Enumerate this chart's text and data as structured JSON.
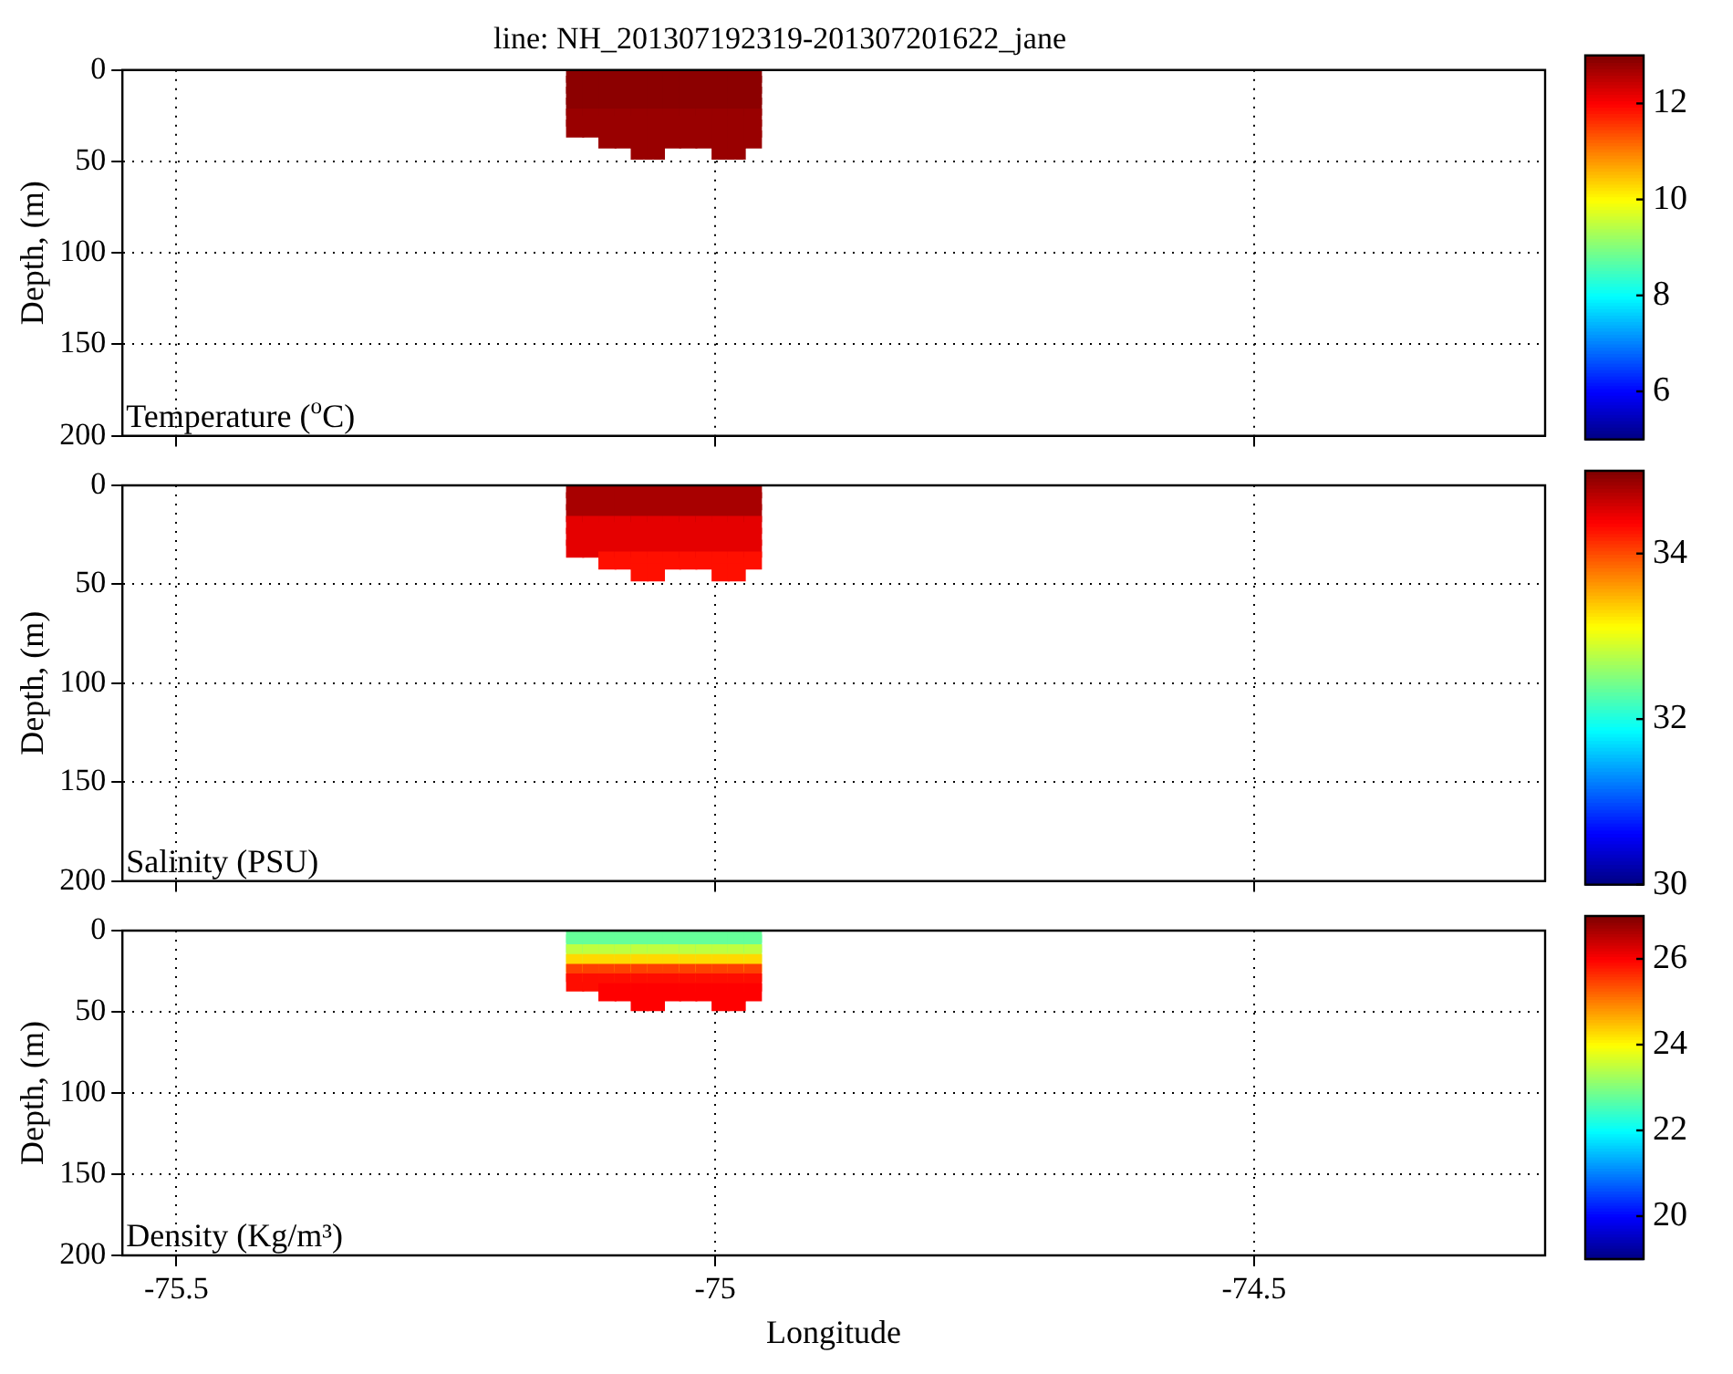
{
  "chart_data": [
    {
      "type": "scatter",
      "title": "line: NH_201307192319-201307201622_jane",
      "ylabel": "Depth, (m)",
      "annotations": [
        "Temperature ($^{o}$C)"
      ],
      "xlim": [
        -75.55,
        -74.23
      ],
      "xticks": [
        -75.5,
        -75,
        -74.5
      ],
      "ylim": [
        200,
        0
      ],
      "yticks": [
        0,
        50,
        100,
        150,
        200
      ],
      "clim": [
        5,
        13
      ],
      "cticks": [
        6,
        8,
        10,
        12
      ],
      "grid": true,
      "marker": "square",
      "tick_labels": "y",
      "series": [
        {
          "x": [
            -75.13,
            -75.13,
            -75.13,
            -75.13,
            -75.13,
            -75.13,
            -75.115,
            -75.115,
            -75.115,
            -75.115,
            -75.115,
            -75.115,
            -75.1,
            -75.1,
            -75.1,
            -75.1,
            -75.1,
            -75.1,
            -75.1,
            -75.085,
            -75.085,
            -75.085,
            -75.085,
            -75.085,
            -75.085,
            -75.085,
            -75.07,
            -75.07,
            -75.07,
            -75.07,
            -75.07,
            -75.07,
            -75.07,
            -75.07,
            -75.055,
            -75.055,
            -75.055,
            -75.055,
            -75.055,
            -75.055,
            -75.055,
            -75.055,
            -75.04,
            -75.04,
            -75.04,
            -75.04,
            -75.04,
            -75.04,
            -75.04,
            -75.025,
            -75.025,
            -75.025,
            -75.025,
            -75.025,
            -75.025,
            -75.025,
            -75.01,
            -75.01,
            -75.01,
            -75.01,
            -75.01,
            -75.01,
            -75.01,
            -74.995,
            -74.995,
            -74.995,
            -74.995,
            -74.995,
            -74.995,
            -74.995,
            -74.995,
            -74.98,
            -74.98,
            -74.98,
            -74.98,
            -74.98,
            -74.98,
            -74.98,
            -74.98,
            -74.965,
            -74.965,
            -74.965,
            -74.965,
            -74.965,
            -74.965,
            -74.965
          ],
          "values": [
            2,
            8,
            14,
            20,
            26,
            32,
            2,
            8,
            14,
            20,
            26,
            32,
            2,
            8,
            14,
            20,
            26,
            32,
            38,
            2,
            8,
            14,
            20,
            26,
            32,
            38,
            2,
            8,
            14,
            20,
            26,
            32,
            38,
            44,
            2,
            8,
            14,
            20,
            26,
            32,
            38,
            44,
            2,
            8,
            14,
            20,
            26,
            32,
            38,
            2,
            8,
            14,
            20,
            26,
            32,
            38,
            2,
            8,
            14,
            20,
            26,
            32,
            38,
            2,
            8,
            14,
            20,
            26,
            32,
            38,
            44,
            2,
            8,
            14,
            20,
            26,
            32,
            38,
            44,
            2,
            8,
            14,
            20,
            26,
            32,
            38
          ],
          "cvalues": [
            12.9,
            12.9,
            12.9,
            12.9,
            12.8,
            12.8,
            12.9,
            12.9,
            12.9,
            12.9,
            12.8,
            12.8,
            12.9,
            12.9,
            12.9,
            12.9,
            12.8,
            12.8,
            12.8,
            12.9,
            12.9,
            12.9,
            12.9,
            12.8,
            12.8,
            12.8,
            12.9,
            12.9,
            12.9,
            12.9,
            12.8,
            12.8,
            12.8,
            12.8,
            12.9,
            12.9,
            12.9,
            12.9,
            12.8,
            12.8,
            12.8,
            12.8,
            12.9,
            12.9,
            12.9,
            12.9,
            12.8,
            12.8,
            12.8,
            12.9,
            12.9,
            12.9,
            12.9,
            12.8,
            12.8,
            12.8,
            12.9,
            12.9,
            12.9,
            12.9,
            12.8,
            12.8,
            12.8,
            12.9,
            12.9,
            12.9,
            12.9,
            12.8,
            12.8,
            12.8,
            12.8,
            12.9,
            12.9,
            12.9,
            12.9,
            12.8,
            12.8,
            12.8,
            12.8,
            12.9,
            12.9,
            12.9,
            12.9,
            12.8,
            12.8,
            12.8
          ]
        }
      ]
    },
    {
      "type": "scatter",
      "ylabel": "Depth, (m)",
      "annotations": [
        "Salinity (PSU)"
      ],
      "xlim": [
        -75.55,
        -74.23
      ],
      "xticks": [
        -75.5,
        -75,
        -74.5
      ],
      "ylim": [
        200,
        0
      ],
      "yticks": [
        0,
        50,
        100,
        150,
        200
      ],
      "clim": [
        30,
        35
      ],
      "cticks": [
        30,
        32,
        34
      ],
      "grid": true,
      "marker": "square",
      "tick_labels": "y",
      "series": [
        {
          "x": [
            -75.13,
            -75.13,
            -75.13,
            -75.13,
            -75.13,
            -75.13,
            -75.115,
            -75.115,
            -75.115,
            -75.115,
            -75.115,
            -75.115,
            -75.1,
            -75.1,
            -75.1,
            -75.1,
            -75.1,
            -75.1,
            -75.1,
            -75.085,
            -75.085,
            -75.085,
            -75.085,
            -75.085,
            -75.085,
            -75.085,
            -75.07,
            -75.07,
            -75.07,
            -75.07,
            -75.07,
            -75.07,
            -75.07,
            -75.07,
            -75.055,
            -75.055,
            -75.055,
            -75.055,
            -75.055,
            -75.055,
            -75.055,
            -75.055,
            -75.04,
            -75.04,
            -75.04,
            -75.04,
            -75.04,
            -75.04,
            -75.04,
            -75.025,
            -75.025,
            -75.025,
            -75.025,
            -75.025,
            -75.025,
            -75.025,
            -75.01,
            -75.01,
            -75.01,
            -75.01,
            -75.01,
            -75.01,
            -75.01,
            -74.995,
            -74.995,
            -74.995,
            -74.995,
            -74.995,
            -74.995,
            -74.995,
            -74.995,
            -74.98,
            -74.98,
            -74.98,
            -74.98,
            -74.98,
            -74.98,
            -74.98,
            -74.98,
            -74.965,
            -74.965,
            -74.965,
            -74.965,
            -74.965,
            -74.965,
            -74.965
          ],
          "values": [
            2,
            8,
            14,
            20,
            26,
            32,
            2,
            8,
            14,
            20,
            26,
            32,
            2,
            8,
            14,
            20,
            26,
            32,
            38,
            2,
            8,
            14,
            20,
            26,
            32,
            38,
            2,
            8,
            14,
            20,
            26,
            32,
            38,
            44,
            2,
            8,
            14,
            20,
            26,
            32,
            38,
            44,
            2,
            8,
            14,
            20,
            26,
            32,
            38,
            2,
            8,
            14,
            20,
            26,
            32,
            38,
            2,
            8,
            14,
            20,
            26,
            32,
            38,
            2,
            8,
            14,
            20,
            26,
            32,
            38,
            44,
            2,
            8,
            14,
            20,
            26,
            32,
            38,
            44,
            2,
            8,
            14,
            20,
            26,
            32,
            38
          ],
          "cvalues": [
            34.8,
            34.8,
            34.8,
            34.5,
            34.5,
            34.5,
            34.8,
            34.8,
            34.8,
            34.5,
            34.5,
            34.5,
            34.8,
            34.8,
            34.8,
            34.5,
            34.5,
            34.5,
            34.3,
            34.8,
            34.8,
            34.8,
            34.5,
            34.5,
            34.5,
            34.3,
            34.8,
            34.8,
            34.8,
            34.5,
            34.5,
            34.5,
            34.3,
            34.3,
            34.8,
            34.8,
            34.8,
            34.5,
            34.5,
            34.5,
            34.3,
            34.3,
            34.8,
            34.8,
            34.8,
            34.5,
            34.5,
            34.5,
            34.3,
            34.8,
            34.8,
            34.8,
            34.5,
            34.5,
            34.5,
            34.3,
            34.8,
            34.8,
            34.8,
            34.5,
            34.5,
            34.5,
            34.3,
            34.8,
            34.8,
            34.8,
            34.5,
            34.5,
            34.5,
            34.3,
            34.3,
            34.8,
            34.8,
            34.8,
            34.5,
            34.5,
            34.5,
            34.3,
            34.3,
            34.8,
            34.8,
            34.8,
            34.5,
            34.5,
            34.5,
            34.3
          ]
        }
      ]
    },
    {
      "type": "scatter",
      "xlabel": "Longitude",
      "ylabel": "Depth, (m)",
      "annotations": [
        "Density (Kg/m³)"
      ],
      "xlim": [
        -75.55,
        -74.23
      ],
      "xticks": [
        -75.5,
        -75,
        -74.5
      ],
      "ylim": [
        200,
        0
      ],
      "yticks": [
        0,
        50,
        100,
        150,
        200
      ],
      "clim": [
        19,
        27
      ],
      "cticks": [
        20,
        22,
        24,
        26
      ],
      "grid": true,
      "marker": "square",
      "series": [
        {
          "x": [
            -75.13,
            -75.13,
            -75.13,
            -75.13,
            -75.13,
            -75.13,
            -75.115,
            -75.115,
            -75.115,
            -75.115,
            -75.115,
            -75.115,
            -75.1,
            -75.1,
            -75.1,
            -75.1,
            -75.1,
            -75.1,
            -75.1,
            -75.085,
            -75.085,
            -75.085,
            -75.085,
            -75.085,
            -75.085,
            -75.085,
            -75.07,
            -75.07,
            -75.07,
            -75.07,
            -75.07,
            -75.07,
            -75.07,
            -75.07,
            -75.055,
            -75.055,
            -75.055,
            -75.055,
            -75.055,
            -75.055,
            -75.055,
            -75.055,
            -75.04,
            -75.04,
            -75.04,
            -75.04,
            -75.04,
            -75.04,
            -75.04,
            -75.025,
            -75.025,
            -75.025,
            -75.025,
            -75.025,
            -75.025,
            -75.025,
            -75.01,
            -75.01,
            -75.01,
            -75.01,
            -75.01,
            -75.01,
            -75.01,
            -74.995,
            -74.995,
            -74.995,
            -74.995,
            -74.995,
            -74.995,
            -74.995,
            -74.995,
            -74.98,
            -74.98,
            -74.98,
            -74.98,
            -74.98,
            -74.98,
            -74.98,
            -74.98,
            -74.965,
            -74.965,
            -74.965,
            -74.965,
            -74.965,
            -74.965,
            -74.965
          ],
          "values": [
            2,
            8,
            14,
            20,
            26,
            32,
            2,
            8,
            14,
            20,
            26,
            32,
            2,
            8,
            14,
            20,
            26,
            32,
            38,
            2,
            8,
            14,
            20,
            26,
            32,
            38,
            2,
            8,
            14,
            20,
            26,
            32,
            38,
            44,
            2,
            8,
            14,
            20,
            26,
            32,
            38,
            44,
            2,
            8,
            14,
            20,
            26,
            32,
            38,
            2,
            8,
            14,
            20,
            26,
            32,
            38,
            2,
            8,
            14,
            20,
            26,
            32,
            38,
            2,
            8,
            14,
            20,
            26,
            32,
            38,
            44,
            2,
            8,
            14,
            20,
            26,
            32,
            38,
            44,
            2,
            8,
            14,
            20,
            26,
            32,
            38
          ],
          "cvalues": [
            22.8,
            22.8,
            23.5,
            24.3,
            25.5,
            25.9,
            22.8,
            22.8,
            23.5,
            24.3,
            25.5,
            25.9,
            22.8,
            22.8,
            23.5,
            24.3,
            25.5,
            25.9,
            26,
            22.8,
            22.8,
            23.5,
            24.3,
            25.5,
            25.9,
            26,
            22.8,
            22.8,
            23.5,
            24.3,
            25.5,
            25.9,
            26,
            26,
            22.8,
            22.8,
            23.5,
            24.3,
            25.5,
            25.9,
            26,
            26,
            22.8,
            22.8,
            23.5,
            24.3,
            25.5,
            25.9,
            26,
            22.8,
            22.8,
            23.5,
            24.3,
            25.5,
            25.9,
            26,
            22.8,
            22.8,
            23.5,
            24.3,
            25.5,
            25.9,
            26,
            22.8,
            22.8,
            23.5,
            24.3,
            25.5,
            25.9,
            26,
            26,
            22.8,
            22.8,
            23.5,
            24.3,
            25.5,
            25.9,
            26,
            26,
            22.8,
            22.8,
            23.5,
            24.3,
            25.5,
            25.9,
            26
          ]
        }
      ]
    }
  ]
}
